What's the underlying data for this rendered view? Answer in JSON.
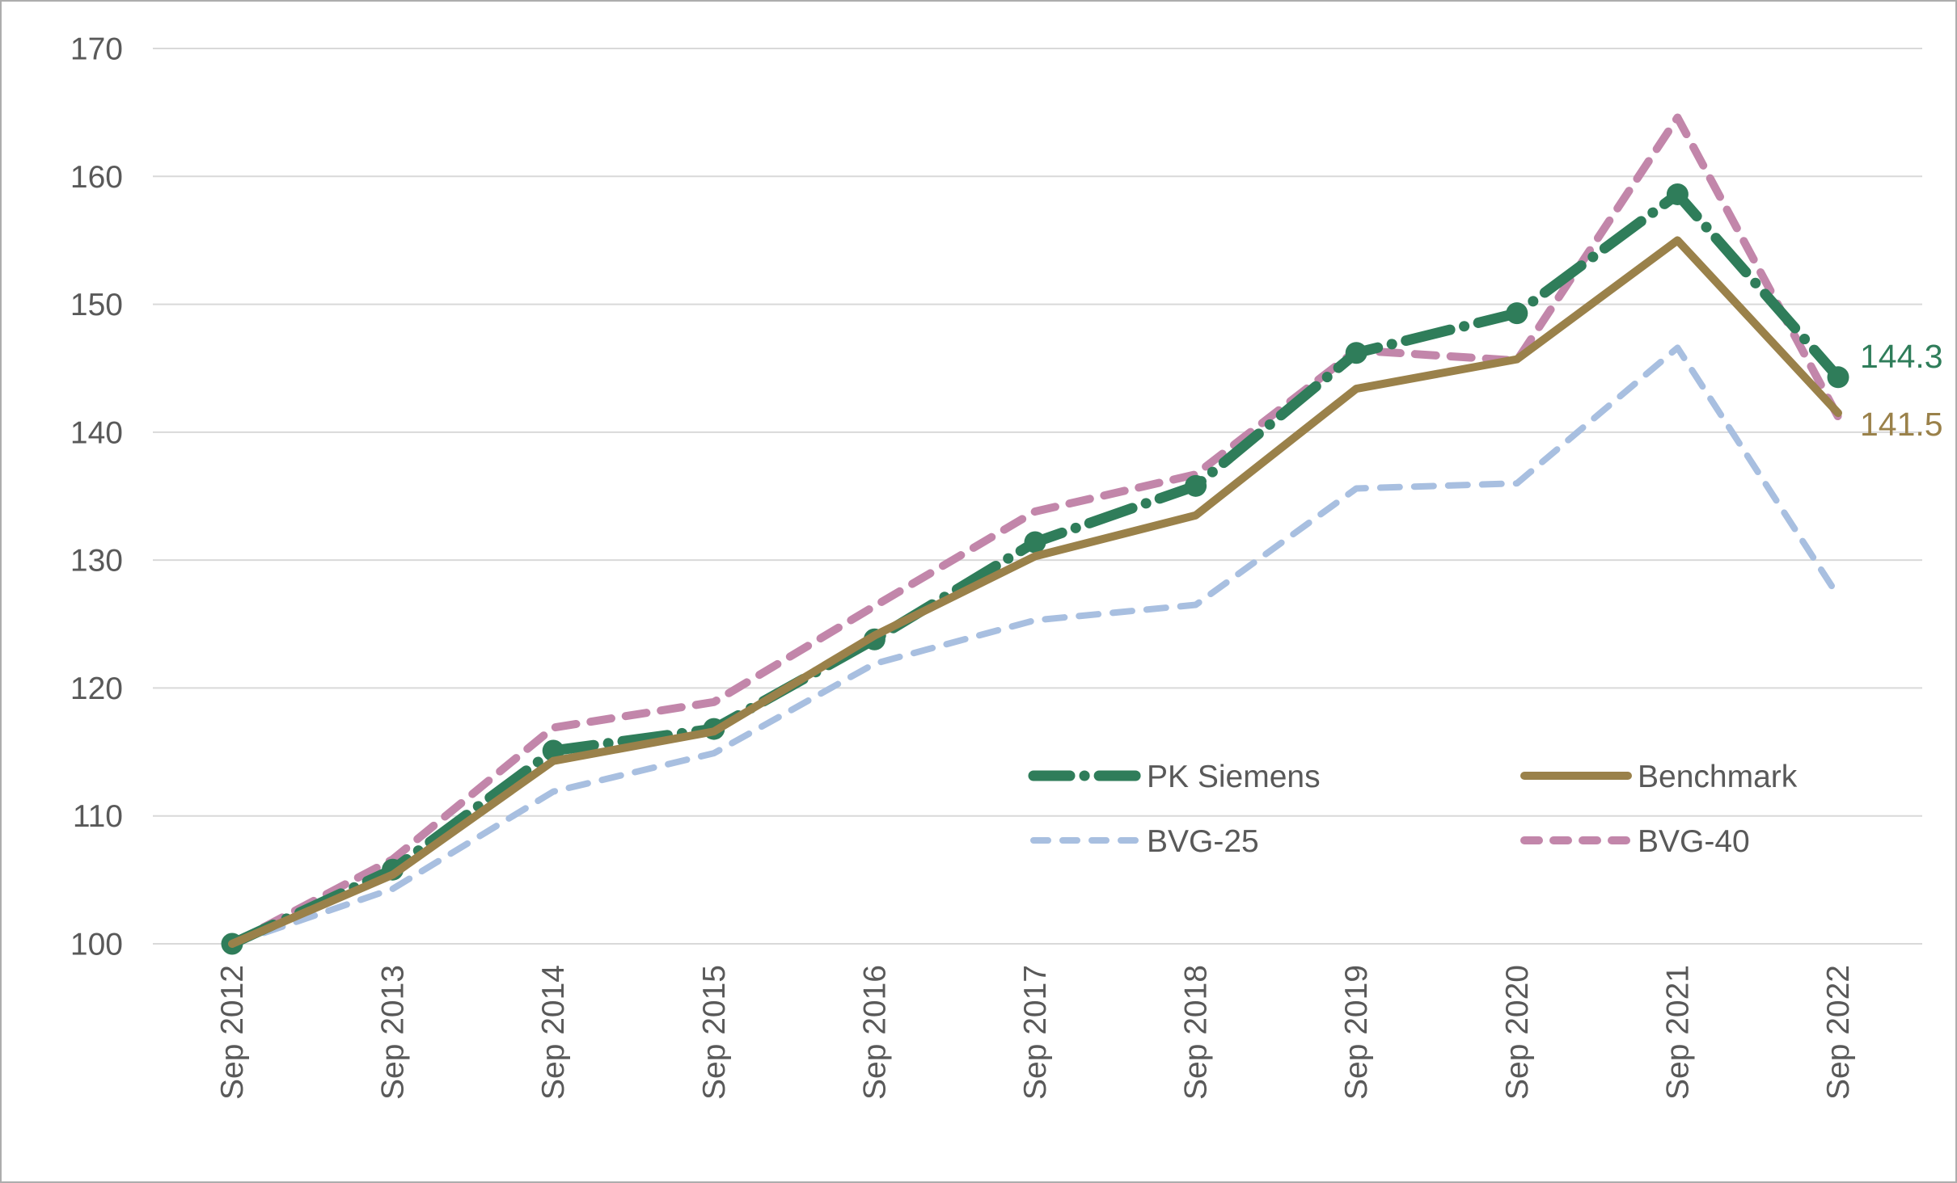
{
  "window": {
    "background": "#ffffff",
    "border_color": "#adadad"
  },
  "chart_data": {
    "type": "line",
    "title": "",
    "categories": [
      "Sep 2012",
      "Sep 2013",
      "Sep 2014",
      "Sep 2015",
      "Sep 2016",
      "Sep 2017",
      "Sep 2018",
      "Sep 2019",
      "Sep 2020",
      "Sep 2021",
      "Sep 2022"
    ],
    "series": [
      {
        "name": "PK Siemens",
        "color": "#2F7D5A",
        "line_style": "dash-dot",
        "line_width": 13,
        "markers": true,
        "values": [
          100,
          105.8,
          115.1,
          116.8,
          123.8,
          131.4,
          135.8,
          146.2,
          149.3,
          158.6,
          144.3
        ],
        "end_label": "144.3"
      },
      {
        "name": "Benchmark",
        "color": "#9A814A",
        "line_style": "solid",
        "line_width": 10,
        "markers": false,
        "values": [
          100,
          105.4,
          114.3,
          116.6,
          124.1,
          130.3,
          133.5,
          143.4,
          145.7,
          155.0,
          141.5
        ],
        "end_label": "141.5"
      },
      {
        "name": "BVG-25",
        "color": "#A8BFE0",
        "line_style": "dashed",
        "line_width": 8,
        "markers": false,
        "values": [
          100,
          104.3,
          111.9,
          114.9,
          121.9,
          125.3,
          126.5,
          135.6,
          136.0,
          146.6,
          127.2
        ],
        "end_label": ""
      },
      {
        "name": "BVG-40",
        "color": "#C286AA",
        "line_style": "dashed",
        "line_width": 10,
        "markers": false,
        "values": [
          100,
          106.6,
          116.9,
          118.9,
          126.4,
          133.8,
          136.7,
          146.4,
          145.6,
          164.6,
          141.2
        ],
        "end_label": ""
      }
    ],
    "y_axis": {
      "min": 100,
      "max": 170,
      "step": 10,
      "tick_labels": [
        "100",
        "110",
        "120",
        "130",
        "140",
        "150",
        "160",
        "170"
      ]
    },
    "x_axis": {
      "tick_labels": [
        "Sep 2012",
        "Sep 2013",
        "Sep 2014",
        "Sep 2015",
        "Sep 2016",
        "Sep 2017",
        "Sep 2018",
        "Sep 2019",
        "Sep 2020",
        "Sep 2021",
        "Sep 2022"
      ],
      "label_rotation_degrees": -90
    },
    "grid": {
      "horizontal": true,
      "vertical": false,
      "color": "#D9D9D9"
    },
    "legend": {
      "position": "inside-lower-right",
      "rows": [
        [
          "PK Siemens",
          "Benchmark"
        ],
        [
          "BVG-25",
          "BVG-40"
        ]
      ],
      "text_color": "#595959"
    },
    "axis_text_color": "#595959",
    "end_label_values": {
      "PK Siemens": "144.3",
      "Benchmark": "141.5"
    },
    "z_order_bottom_to_top": [
      "BVG-25",
      "BVG-40",
      "PK Siemens",
      "Benchmark"
    ]
  }
}
